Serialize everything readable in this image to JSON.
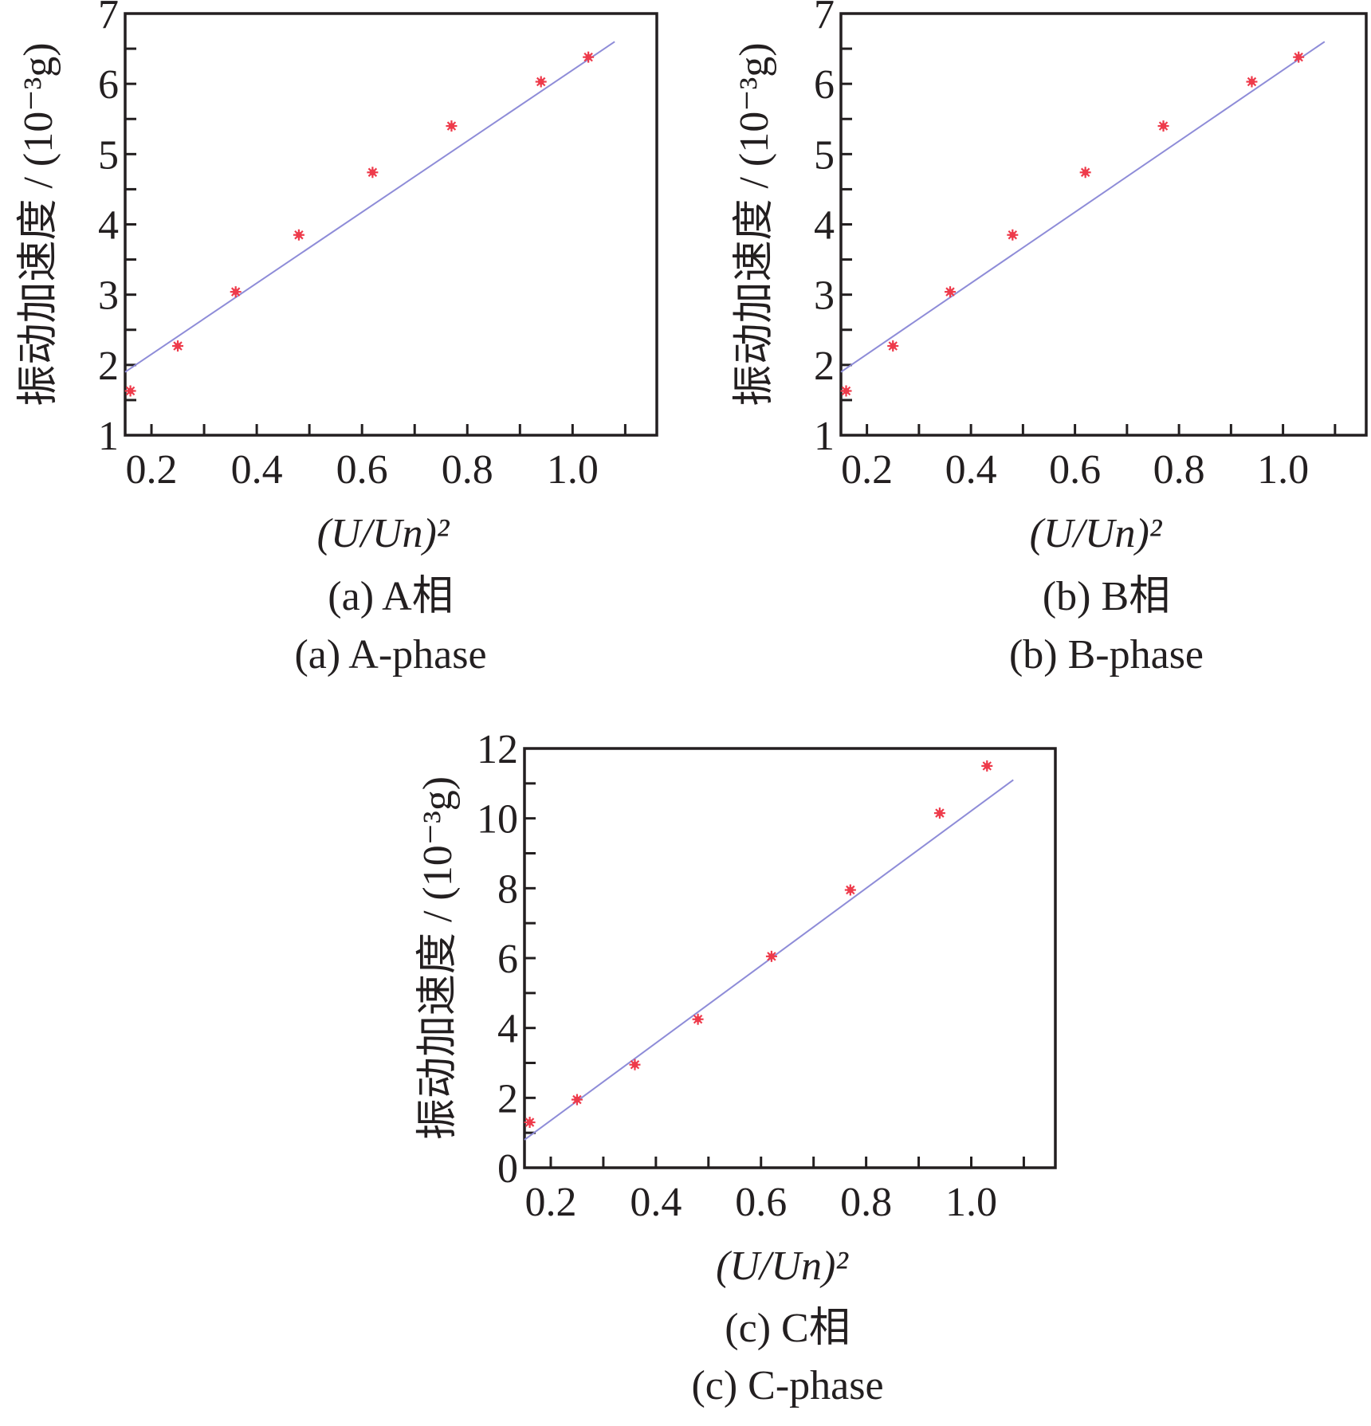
{
  "chart_data": [
    {
      "type": "scatter",
      "panel": "a",
      "caption_cn": "(a) A相",
      "caption_en": "(a) A-phase",
      "ylabel": "振动加速度 / (10⁻³g)",
      "xlabel": "(U/Un)²",
      "xlim": [
        0.15,
        1.16
      ],
      "ylim": [
        1,
        7
      ],
      "xticks": [
        "0.2",
        "0.4",
        "0.6",
        "0.8",
        "1.0"
      ],
      "yticks": [
        "1",
        "2",
        "3",
        "4",
        "5",
        "6",
        "7"
      ],
      "x": [
        0.16,
        0.25,
        0.36,
        0.48,
        0.62,
        0.77,
        0.94,
        1.03
      ],
      "y": [
        1.63,
        2.27,
        3.04,
        3.85,
        4.74,
        5.4,
        6.03,
        6.38
      ],
      "fit_line": {
        "x": [
          0.15,
          1.08
        ],
        "y": [
          1.9,
          6.6
        ]
      }
    },
    {
      "type": "scatter",
      "panel": "b",
      "caption_cn": "(b) B相",
      "caption_en": "(b) B-phase",
      "ylabel": "振动加速度 / (10⁻³g)",
      "xlabel": "(U/Un)²",
      "xlim": [
        0.15,
        1.16
      ],
      "ylim": [
        1,
        7
      ],
      "xticks": [
        "0.2",
        "0.4",
        "0.6",
        "0.8",
        "1.0"
      ],
      "yticks": [
        "1",
        "2",
        "3",
        "4",
        "5",
        "6",
        "7"
      ],
      "x": [
        0.16,
        0.25,
        0.36,
        0.48,
        0.62,
        0.77,
        0.94,
        1.03
      ],
      "y": [
        1.63,
        2.27,
        3.04,
        3.85,
        4.74,
        5.4,
        6.03,
        6.38
      ],
      "fit_line": {
        "x": [
          0.15,
          1.08
        ],
        "y": [
          1.9,
          6.6
        ]
      }
    },
    {
      "type": "scatter",
      "panel": "c",
      "caption_cn": "(c) C相",
      "caption_en": "(c) C-phase",
      "ylabel": "振动加速度 / (10⁻³g)",
      "xlabel": "(U/Un)²",
      "xlim": [
        0.15,
        1.16
      ],
      "ylim": [
        0,
        12
      ],
      "xticks": [
        "0.2",
        "0.4",
        "0.6",
        "0.8",
        "1.0"
      ],
      "yticks": [
        "0",
        "2",
        "4",
        "6",
        "8",
        "10",
        "12"
      ],
      "x": [
        0.16,
        0.25,
        0.36,
        0.48,
        0.62,
        0.77,
        0.94,
        1.03
      ],
      "y": [
        1.3,
        1.95,
        2.95,
        4.25,
        6.05,
        7.95,
        10.15,
        11.5
      ],
      "fit_line": {
        "x": [
          0.15,
          1.08
        ],
        "y": [
          0.8,
          11.1
        ]
      }
    }
  ]
}
